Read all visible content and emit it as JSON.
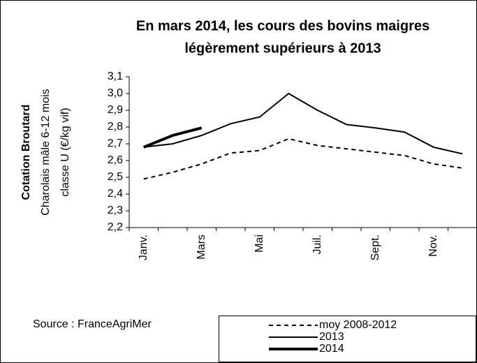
{
  "chart_data": {
    "type": "line",
    "title": [
      "En mars 2014, les cours des bovins maigres",
      "légèrement supérieurs à 2013"
    ],
    "y_label": [
      "Cotation Broutard",
      "Charolais mâle 6-12 mois",
      "classe U  (€/kg vif)"
    ],
    "source": "Source : FranceAgriMer",
    "categories": [
      "Janv.",
      null,
      "Mars",
      null,
      "Mai",
      null,
      "Juil.",
      null,
      "Sept.",
      null,
      "Nov.",
      null
    ],
    "series": [
      {
        "name": "moy 2008-2012",
        "color": "#000000",
        "style": "dashed",
        "width": 2,
        "values": [
          2.49,
          2.53,
          2.58,
          2.645,
          2.66,
          2.73,
          2.69,
          2.67,
          2.65,
          2.63,
          2.58,
          2.555
        ]
      },
      {
        "name": "2013",
        "color": "#000000",
        "style": "solid",
        "width": 2,
        "values": [
          2.68,
          2.7,
          2.75,
          2.82,
          2.86,
          3.0,
          2.9,
          2.815,
          2.795,
          2.77,
          2.68,
          2.64
        ]
      },
      {
        "name": "2014",
        "color": "#000000",
        "style": "solid",
        "width": 4,
        "values": [
          2.68,
          2.75,
          2.795,
          null,
          null,
          null,
          null,
          null,
          null,
          null,
          null,
          null
        ]
      }
    ],
    "ylim": [
      2.2,
      3.1
    ],
    "yticks": [
      {
        "value": 2.2,
        "label": "2,2"
      },
      {
        "value": 2.3,
        "label": "2,3"
      },
      {
        "value": 2.4,
        "label": "2,4"
      },
      {
        "value": 2.5,
        "label": "2,5"
      },
      {
        "value": 2.6,
        "label": "2,6"
      },
      {
        "value": 2.7,
        "label": "2,7"
      },
      {
        "value": 2.8,
        "label": "2,8"
      },
      {
        "value": 2.9,
        "label": "2,9"
      },
      {
        "value": 3.0,
        "label": "3,0"
      },
      {
        "value": 3.1,
        "label": "3,1"
      }
    ],
    "grid": false,
    "legend": "bottom-right"
  }
}
